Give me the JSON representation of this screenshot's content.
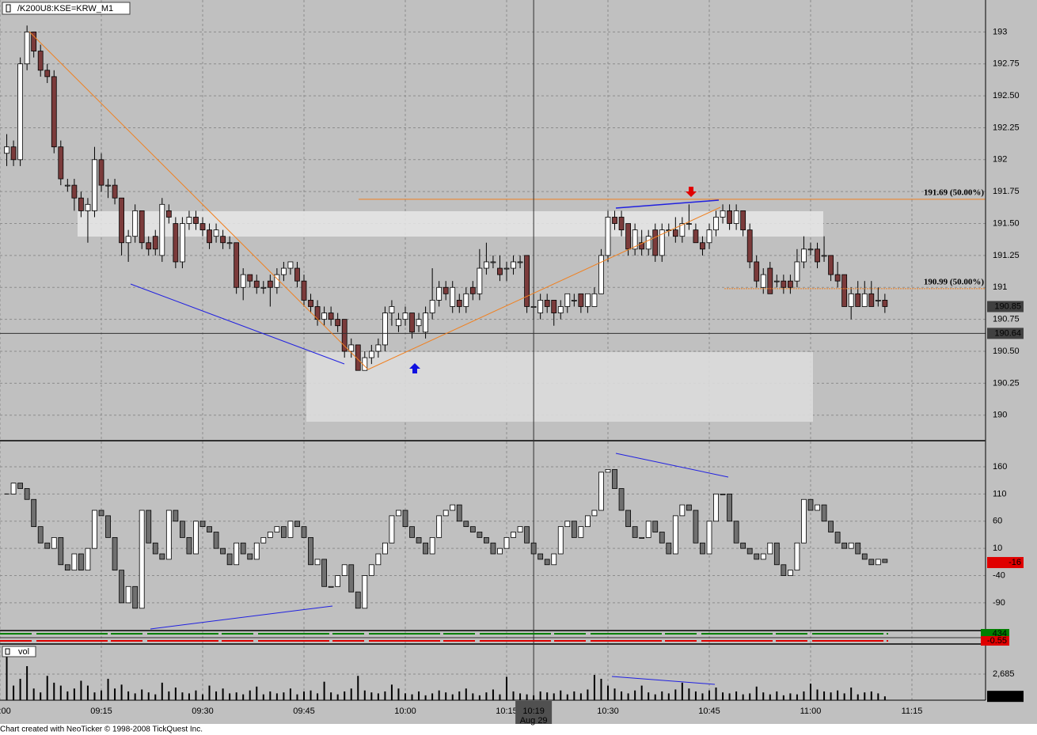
{
  "footer": "Chart created with NeoTicker © 1998-2008 TickQuest Inc.",
  "chart_data": [
    {
      "type": "candlestick",
      "title": "/K200U8:KSE=KRW_M1",
      "x": [
        541,
        542,
        543,
        544,
        545,
        546,
        547,
        548,
        549,
        550,
        551,
        552,
        553,
        554,
        555,
        556,
        557,
        558,
        559,
        560,
        561,
        562,
        563,
        564,
        565,
        566,
        567,
        568,
        569,
        570,
        571,
        572,
        573,
        574,
        575,
        576,
        577,
        578,
        579,
        580,
        581,
        582,
        583,
        584,
        585,
        586,
        587,
        588,
        589,
        590,
        591,
        592,
        593,
        594,
        595,
        596,
        597,
        598,
        599,
        600,
        601,
        602,
        603,
        604,
        605,
        606,
        607,
        608,
        609,
        610,
        611,
        612,
        613,
        614,
        615,
        616,
        617,
        618,
        619,
        620,
        621,
        622,
        623,
        624,
        625,
        626,
        627,
        628,
        629,
        630,
        631,
        632,
        633,
        634,
        635,
        636,
        637,
        638,
        639,
        640,
        641,
        642,
        643,
        644,
        645,
        646,
        647,
        648,
        649,
        650,
        651,
        652,
        653,
        654,
        655,
        656,
        657,
        658,
        659,
        660,
        661,
        662,
        663,
        664,
        665,
        666,
        667,
        668,
        669,
        670,
        671
      ],
      "xlim": [
        540,
        685.9
      ],
      "xticks": [
        {
          "value": 540,
          "label": "09:00"
        },
        {
          "value": 555,
          "label": "09:15"
        },
        {
          "value": 570,
          "label": "09:30"
        },
        {
          "value": 585,
          "label": "09:45"
        },
        {
          "value": 600,
          "label": "10:00"
        },
        {
          "value": 615,
          "label": "10:15"
        },
        {
          "value": 630,
          "label": "10:30"
        },
        {
          "value": 645,
          "label": "10:45"
        },
        {
          "value": 660,
          "label": "11:00"
        },
        {
          "value": 675,
          "label": "11:15"
        }
      ],
      "open": [
        192.05,
        192.1,
        192.0,
        192.75,
        193.0,
        192.85,
        192.7,
        192.65,
        192.1,
        191.8,
        191.8,
        191.7,
        191.6,
        191.6,
        192.0,
        191.8,
        191.8,
        191.7,
        191.35,
        191.4,
        191.6,
        191.35,
        191.4,
        191.25,
        191.6,
        191.5,
        191.2,
        191.5,
        191.55,
        191.5,
        191.45,
        191.4,
        191.4,
        191.35,
        191.35,
        191.0,
        191.1,
        191.05,
        191.0,
        191.05,
        191.0,
        191.1,
        191.15,
        191.15,
        191.05,
        190.9,
        190.85,
        190.75,
        190.8,
        190.75,
        190.75,
        190.5,
        190.55,
        190.35,
        190.45,
        190.5,
        190.55,
        190.8,
        190.7,
        190.75,
        190.8,
        190.7,
        190.65,
        190.8,
        190.9,
        191.0,
        190.85,
        190.9,
        190.85,
        191.0,
        190.95,
        191.15,
        191.2,
        191.15,
        191.15,
        191.15,
        191.2,
        191.25,
        190.85,
        190.8,
        190.9,
        190.9,
        190.8,
        190.85,
        190.9,
        190.95,
        190.85,
        190.85,
        190.95,
        191.25,
        191.55,
        191.55,
        191.5,
        191.3,
        191.35,
        191.3,
        191.45,
        191.25,
        191.45,
        191.45,
        191.4,
        191.5,
        191.45,
        191.35,
        191.35,
        191.45,
        191.55,
        191.6,
        191.5,
        191.6,
        191.45,
        191.2,
        191.0,
        191.15,
        191.05,
        191.05,
        191.05,
        191.05,
        191.2,
        191.3,
        191.3,
        191.25,
        191.25,
        191.1,
        191.1,
        190.85,
        190.95,
        190.85,
        190.95,
        190.9,
        190.9
      ],
      "high": [
        192.2,
        192.15,
        192.8,
        193.05,
        193.0,
        192.9,
        192.75,
        192.7,
        192.15,
        191.85,
        191.85,
        191.75,
        191.7,
        192.1,
        192.05,
        191.85,
        191.85,
        191.7,
        191.45,
        191.65,
        191.6,
        191.4,
        191.45,
        191.7,
        191.65,
        191.55,
        191.55,
        191.6,
        191.6,
        191.55,
        191.5,
        191.5,
        191.45,
        191.4,
        191.35,
        191.15,
        191.1,
        191.1,
        191.05,
        191.1,
        191.15,
        191.2,
        191.2,
        191.2,
        191.1,
        190.95,
        190.9,
        190.85,
        190.85,
        190.8,
        190.75,
        190.6,
        190.55,
        190.5,
        190.55,
        190.6,
        190.85,
        190.9,
        190.8,
        190.85,
        190.8,
        190.8,
        190.85,
        191.15,
        191.05,
        191.05,
        191.05,
        190.95,
        191.0,
        191.05,
        191.3,
        191.35,
        191.25,
        191.25,
        191.2,
        191.25,
        191.25,
        191.25,
        190.95,
        190.95,
        190.95,
        190.9,
        190.9,
        190.95,
        190.95,
        190.95,
        190.95,
        191.0,
        191.3,
        191.6,
        191.6,
        191.6,
        191.5,
        191.5,
        191.45,
        191.45,
        191.5,
        191.5,
        191.5,
        191.55,
        191.55,
        191.65,
        191.5,
        191.4,
        191.5,
        191.6,
        191.65,
        191.65,
        191.65,
        191.6,
        191.5,
        191.25,
        191.15,
        191.2,
        191.1,
        191.1,
        191.1,
        191.3,
        191.4,
        191.35,
        191.35,
        191.4,
        191.25,
        191.2,
        191.1,
        191.0,
        191.05,
        191.05,
        191.05,
        191.0,
        190.95
      ],
      "low": [
        191.95,
        191.95,
        191.95,
        192.7,
        192.8,
        192.65,
        192.6,
        192.05,
        191.8,
        191.75,
        191.6,
        191.55,
        191.35,
        191.55,
        191.75,
        191.7,
        191.65,
        191.25,
        191.2,
        191.35,
        191.3,
        191.25,
        191.25,
        191.2,
        191.5,
        191.15,
        191.15,
        191.45,
        191.45,
        191.4,
        191.3,
        191.35,
        191.3,
        191.3,
        190.95,
        190.9,
        191.0,
        190.95,
        190.95,
        190.85,
        190.95,
        191.05,
        191.1,
        191.0,
        190.85,
        190.8,
        190.7,
        190.7,
        190.7,
        190.65,
        190.45,
        190.45,
        190.35,
        190.35,
        190.4,
        190.45,
        190.5,
        190.7,
        190.65,
        190.7,
        190.6,
        190.65,
        190.6,
        190.75,
        190.85,
        190.9,
        190.8,
        190.8,
        190.8,
        190.9,
        190.9,
        191.1,
        191.15,
        191.05,
        191.05,
        191.1,
        191.15,
        190.8,
        190.75,
        190.75,
        190.8,
        190.7,
        190.75,
        190.8,
        190.85,
        190.8,
        190.8,
        190.85,
        190.95,
        191.2,
        191.45,
        191.4,
        191.25,
        191.25,
        191.25,
        191.25,
        191.2,
        191.2,
        191.4,
        191.35,
        191.35,
        191.45,
        191.35,
        191.25,
        191.3,
        191.4,
        191.5,
        191.45,
        191.45,
        191.4,
        191.15,
        191.0,
        190.95,
        190.95,
        191.0,
        190.95,
        190.95,
        191.0,
        191.15,
        191.25,
        191.15,
        191.2,
        191.05,
        191.0,
        190.85,
        190.75,
        190.85,
        190.85,
        190.85,
        190.85,
        190.8
      ],
      "close": [
        192.1,
        192.0,
        192.75,
        193.0,
        192.85,
        192.7,
        192.65,
        192.1,
        191.85,
        191.8,
        191.7,
        191.6,
        191.65,
        192.0,
        191.8,
        191.8,
        191.7,
        191.35,
        191.4,
        191.6,
        191.35,
        191.3,
        191.3,
        191.65,
        191.55,
        191.2,
        191.5,
        191.55,
        191.5,
        191.45,
        191.35,
        191.45,
        191.35,
        191.35,
        191.0,
        191.1,
        191.05,
        191.0,
        191.0,
        191.0,
        191.1,
        191.15,
        191.2,
        191.05,
        190.9,
        190.85,
        190.75,
        190.8,
        190.75,
        190.7,
        190.5,
        190.55,
        190.35,
        190.45,
        190.5,
        190.55,
        190.8,
        190.85,
        190.75,
        190.8,
        190.65,
        190.75,
        190.8,
        190.9,
        191.0,
        190.95,
        191.0,
        190.85,
        190.95,
        190.95,
        191.15,
        191.2,
        191.2,
        191.1,
        191.15,
        191.2,
        191.2,
        190.85,
        190.85,
        190.9,
        190.85,
        190.8,
        190.85,
        190.95,
        190.9,
        190.85,
        190.95,
        190.95,
        191.25,
        191.55,
        191.5,
        191.45,
        191.3,
        191.45,
        191.3,
        191.4,
        191.25,
        191.45,
        191.45,
        191.4,
        191.5,
        191.5,
        191.35,
        191.3,
        191.45,
        191.55,
        191.6,
        191.5,
        191.6,
        191.45,
        191.2,
        191.05,
        191.1,
        190.95,
        191.05,
        191.0,
        191.0,
        191.2,
        191.3,
        191.3,
        191.2,
        191.25,
        191.1,
        191.05,
        190.85,
        190.95,
        190.85,
        190.95,
        190.85,
        190.9,
        190.85
      ],
      "up_color": "#ffffff",
      "down_color": "#7b3b3b",
      "ylim": [
        189.8,
        193.25
      ],
      "yticks": [
        193,
        192.75,
        {
          "value": 192.5,
          "label": "192.50"
        },
        192.25,
        192,
        191.75,
        {
          "value": 191.5,
          "label": "191.50"
        },
        191.25,
        191,
        190.75,
        {
          "value": 190.5,
          "label": "190.50"
        },
        190.25,
        190
      ],
      "grid": true,
      "levels": [
        {
          "value": 191.69,
          "label": "191.69 (50.00%)"
        },
        {
          "value": 190.99,
          "label": "190.99 (50.00%)"
        }
      ],
      "crosshair": {
        "x": {
          "value": 619,
          "label": "10:19"
        },
        "date": "Aug 29",
        "y": 190.64
      }
    },
    {
      "type": "candlestick",
      "values": [
        110,
        130,
        120,
        100,
        50,
        20,
        10,
        30,
        -20,
        -30,
        0,
        -30,
        10,
        80,
        70,
        30,
        -30,
        -90,
        -60,
        -100,
        80,
        20,
        0,
        -10,
        80,
        60,
        30,
        0,
        60,
        50,
        40,
        10,
        0,
        -20,
        20,
        0,
        -10,
        20,
        30,
        40,
        50,
        30,
        60,
        50,
        30,
        -20,
        -10,
        -60,
        -60,
        -40,
        -20,
        -70,
        -100,
        -40,
        -20,
        0,
        20,
        70,
        80,
        50,
        30,
        20,
        0,
        30,
        70,
        80,
        90,
        60,
        50,
        40,
        30,
        20,
        0,
        10,
        30,
        40,
        50,
        20,
        0,
        -10,
        -20,
        0,
        50,
        60,
        30,
        50,
        70,
        80,
        150,
        155,
        120,
        80,
        50,
        30,
        30,
        60,
        40,
        20,
        0,
        70,
        90,
        80,
        20,
        0,
        60,
        110,
        110,
        60,
        20,
        10,
        0,
        -10,
        0,
        20,
        -20,
        -40,
        -30,
        20,
        100,
        80,
        90,
        60,
        40,
        20,
        10,
        20,
        0,
        -10,
        -20,
        -10,
        -16
      ],
      "up_color": "#ffffff",
      "down_color": "#707070",
      "ylim": [
        -141,
        206.5
      ],
      "yticks": [
        160,
        110,
        60,
        10,
        -40,
        -90
      ],
      "grid": true
    },
    {
      "type": "strip",
      "values": [
        434,
        -0.55
      ],
      "colors": [
        "#008000",
        "#e00000"
      ]
    },
    {
      "type": "bar",
      "title": "vol",
      "values": [
        4500,
        1500,
        2200,
        3500,
        1200,
        800,
        2500,
        1800,
        1500,
        900,
        1200,
        2000,
        1500,
        800,
        1000,
        2200,
        1200,
        1600,
        900,
        700,
        1100,
        800,
        600,
        1800,
        900,
        1300,
        800,
        700,
        1000,
        600,
        1500,
        900,
        1200,
        700,
        800,
        600,
        1000,
        1400,
        600,
        900,
        700,
        800,
        1200,
        600,
        900,
        1000,
        700,
        1900,
        800,
        600,
        900,
        1200,
        2500,
        1000,
        800,
        700,
        900,
        1600,
        1200,
        700,
        600,
        900,
        500,
        700,
        1000,
        800,
        600,
        900,
        1200,
        700,
        500,
        800,
        1100,
        600,
        2400,
        900,
        700,
        600,
        500,
        900,
        800,
        700,
        1000,
        600,
        900,
        700,
        1100,
        2600,
        2200,
        1500,
        1200,
        900,
        700,
        1000,
        1500,
        800,
        600,
        900,
        700,
        1100,
        1800,
        1200,
        900,
        700,
        1000,
        1300,
        800,
        700,
        900,
        600,
        700,
        1400,
        800,
        600,
        900,
        500,
        700,
        600,
        900,
        1700,
        1100,
        900,
        800,
        1000,
        700,
        1300,
        600,
        800,
        900,
        700,
        393
      ],
      "color": "#000000",
      "ylim": [
        0,
        5695
      ],
      "yticks": [
        {
          "value": 2685,
          "label": "2,685"
        }
      ],
      "grid": true
    }
  ]
}
